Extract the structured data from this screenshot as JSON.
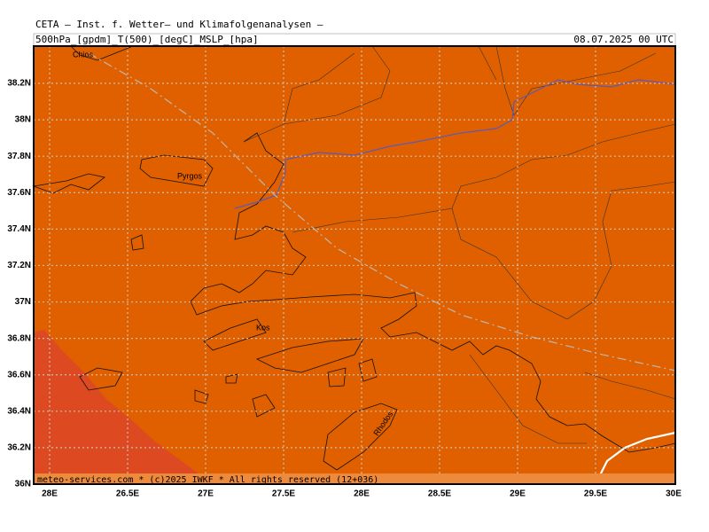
{
  "header": {
    "title": "CETA — Inst. f. Wetter— und Klimafolgenanalysen —",
    "parameters": "500hPa_[gpdm]_T(500)_[degC]_MSLP_[hpa]",
    "valid_time": "08.07.2025 00 UTC"
  },
  "map": {
    "latitude_labels": [
      "38.2N",
      "38N",
      "37.8N",
      "37.6N",
      "37.4N",
      "37.2N",
      "37N",
      "36.8N",
      "36.6N",
      "36.4N",
      "36.2N",
      "36N"
    ],
    "longitude_labels": [
      "28E",
      "26.5E",
      "27E",
      "27.5E",
      "28E",
      "28.5E",
      "29E",
      "29.5E",
      "30E"
    ],
    "places": [
      "Chios",
      "Pyrgos",
      "Kos",
      "Rhodos"
    ]
  },
  "footer": {
    "credit": "meteo-services.com * (c)2025 IWKF * All rights reserved (12+036)"
  }
}
